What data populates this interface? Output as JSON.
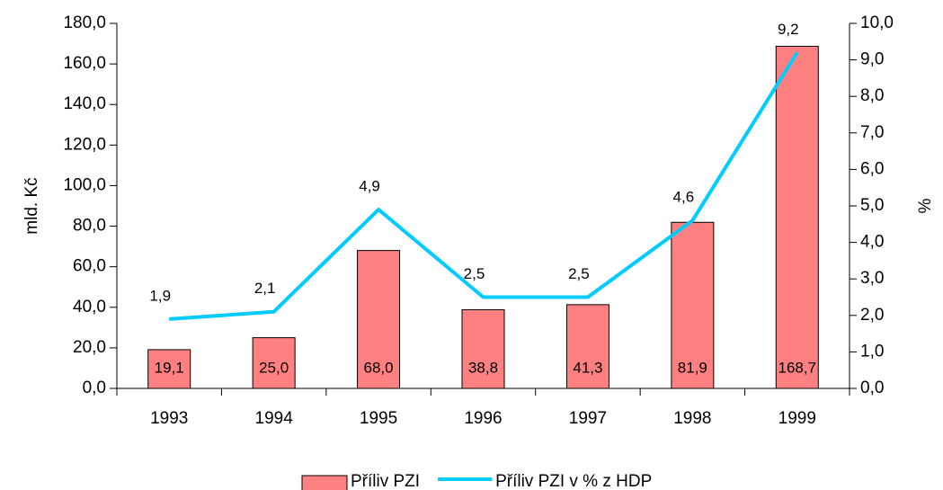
{
  "chart_data": {
    "type": "bar",
    "categories": [
      "1993",
      "1994",
      "1995",
      "1996",
      "1997",
      "1998",
      "1999"
    ],
    "ylabel": "mld. Kč",
    "y2label": "%",
    "ylim": [
      0,
      180
    ],
    "yticks": [
      {
        "value": 0,
        "label": "0,0"
      },
      {
        "value": 20,
        "label": "20,0"
      },
      {
        "value": 40,
        "label": "40,0"
      },
      {
        "value": 60,
        "label": "60,0"
      },
      {
        "value": 80,
        "label": "80,0"
      },
      {
        "value": 100,
        "label": "100,0"
      },
      {
        "value": 120,
        "label": "120,0"
      },
      {
        "value": 140,
        "label": "140,0"
      },
      {
        "value": 160,
        "label": "160,0"
      },
      {
        "value": 180,
        "label": "180,0"
      }
    ],
    "y2lim": [
      0,
      10
    ],
    "y2ticks": [
      {
        "value": 0,
        "label": "0,0"
      },
      {
        "value": 1,
        "label": "1,0"
      },
      {
        "value": 2,
        "label": "2,0"
      },
      {
        "value": 3,
        "label": "3,0"
      },
      {
        "value": 4,
        "label": "4,0"
      },
      {
        "value": 5,
        "label": "5,0"
      },
      {
        "value": 6,
        "label": "6,0"
      },
      {
        "value": 7,
        "label": "7,0"
      },
      {
        "value": 8,
        "label": "8,0"
      },
      {
        "value": 9,
        "label": "9,0"
      },
      {
        "value": 10,
        "label": "10,0"
      }
    ],
    "series": [
      {
        "name": "Příliv PZI",
        "type": "bar",
        "color": "#ff8080",
        "values": [
          19.1,
          25.0,
          68.0,
          38.8,
          41.3,
          81.9,
          168.7
        ],
        "value_labels": [
          "19,1",
          "25,0",
          "68,0",
          "38,8",
          "41,3",
          "81,9",
          "168,7"
        ]
      },
      {
        "name": "Příliv PZI v % z HDP",
        "type": "line",
        "color": "#00ccff",
        "axis": "y2",
        "values": [
          1.9,
          2.1,
          4.9,
          2.5,
          2.5,
          4.6,
          9.2
        ],
        "value_labels": [
          "1,9",
          "2,1",
          "4,9",
          "2,5",
          "2,5",
          "4,6",
          "9,2"
        ]
      }
    ]
  }
}
